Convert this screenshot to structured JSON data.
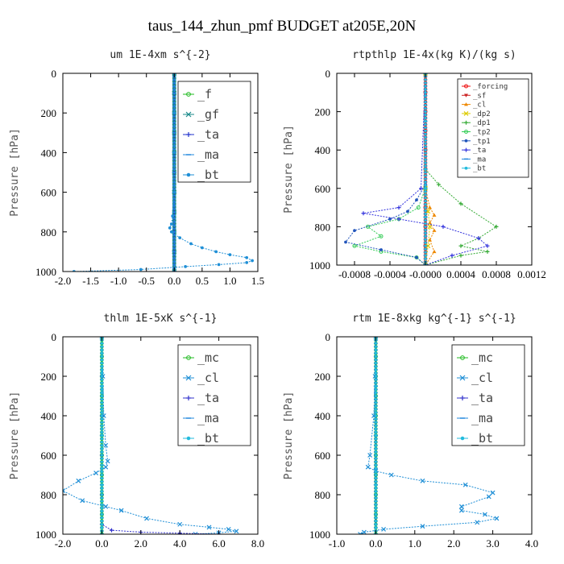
{
  "figure": {
    "title": "taus_144_zhun_pmf  BUDGET at205E,20N"
  },
  "chart_data": [
    {
      "type": "line",
      "title": "um  1E-4xm s^{-2}",
      "ylabel": "Pressure [hPa]",
      "xlim": [
        -2.0,
        1.5
      ],
      "ylim": [
        1000,
        0
      ],
      "xticks": [
        "-2.0",
        "-1.5",
        "-1.0",
        "-0.5",
        "0.0",
        "0.5",
        "1.0",
        "1.5"
      ],
      "yticks": [
        "0",
        "200",
        "400",
        "600",
        "800",
        "1000"
      ],
      "grid": false,
      "legend_position": "top-right",
      "legend_style": "big",
      "series": [
        {
          "name": "_f",
          "color": "#22bb22",
          "marker": "o",
          "x": [
            0,
            0,
            0,
            0,
            0,
            0,
            0,
            0,
            0,
            0,
            0
          ],
          "y": [
            0,
            100,
            200,
            300,
            400,
            500,
            600,
            700,
            800,
            900,
            1000
          ]
        },
        {
          "name": "_gf",
          "color": "#1a8a8a",
          "marker": "x",
          "x": [
            0,
            0,
            0,
            0,
            0,
            0,
            0,
            0,
            0,
            0,
            0
          ],
          "y": [
            0,
            100,
            200,
            300,
            400,
            500,
            600,
            700,
            800,
            900,
            1000
          ]
        },
        {
          "name": "_ta",
          "color": "#2233cc",
          "marker": "+",
          "x": [
            0,
            0,
            0,
            0,
            0,
            0,
            0,
            0,
            0,
            0,
            0
          ],
          "y": [
            0,
            100,
            200,
            300,
            400,
            500,
            600,
            700,
            800,
            900,
            1000
          ]
        },
        {
          "name": "_ma",
          "color": "#2288dd",
          "marker": "-",
          "x": [
            0,
            0,
            0,
            0,
            0,
            0,
            0,
            0,
            0,
            0,
            0
          ],
          "y": [
            0,
            100,
            200,
            300,
            400,
            500,
            600,
            700,
            800,
            900,
            1000
          ]
        },
        {
          "name": "_bt",
          "color": "#1f8fd6",
          "marker": "*",
          "x": [
            0,
            0,
            0,
            0,
            -0.03,
            -0.05,
            -0.08,
            -0.05,
            0.1,
            0.3,
            0.5,
            0.75,
            1.0,
            1.3,
            1.4,
            1.3,
            0.8,
            0.2,
            -0.6,
            -1.8
          ],
          "y": [
            0,
            200,
            400,
            600,
            720,
            760,
            780,
            800,
            830,
            860,
            880,
            900,
            915,
            930,
            945,
            955,
            965,
            975,
            990,
            1000
          ]
        }
      ]
    },
    {
      "type": "line",
      "title": "rtpthlp  1E-4x(kg K)/(kg s)",
      "ylabel": "Pressure [hPa]",
      "xlim": [
        -0.001,
        0.0012
      ],
      "ylim": [
        1000,
        0
      ],
      "xticks": [
        "-0.0008",
        "-0.0004",
        "-0.0000",
        "0.0004",
        "0.0008",
        "0.0012"
      ],
      "yticks": [
        "0",
        "200",
        "400",
        "600",
        "800",
        "1000"
      ],
      "grid": false,
      "legend_position": "top-right",
      "legend_style": "small",
      "series": [
        {
          "name": "_forcing",
          "color": "#ee1111",
          "marker": "o",
          "x": [
            0,
            0,
            0,
            0,
            0,
            0,
            0,
            0,
            0,
            0,
            0
          ],
          "y": [
            0,
            100,
            200,
            300,
            400,
            500,
            600,
            700,
            800,
            900,
            1000
          ]
        },
        {
          "name": "_sf",
          "color": "#cc2222",
          "marker": "v",
          "x": [
            0,
            0,
            0,
            0,
            0,
            0,
            0,
            0,
            0,
            0,
            0
          ],
          "y": [
            0,
            100,
            200,
            300,
            400,
            500,
            600,
            700,
            800,
            900,
            1000
          ]
        },
        {
          "name": "_cl",
          "color": "#ee8800",
          "marker": "^",
          "x": [
            0,
            0,
            0,
            5e-05,
            0.0001,
            5e-05,
            0.0001,
            5e-05,
            0.0001,
            0
          ],
          "y": [
            0,
            500,
            600,
            700,
            740,
            780,
            820,
            870,
            930,
            1000
          ]
        },
        {
          "name": "_dp2",
          "color": "#ddcc00",
          "marker": "x",
          "x": [
            0,
            0,
            3e-05,
            5e-05,
            3e-05,
            0
          ],
          "y": [
            0,
            600,
            720,
            800,
            900,
            1000
          ]
        },
        {
          "name": "_dp1",
          "color": "#33aa33",
          "marker": "+",
          "x": [
            0,
            0,
            0.00015,
            0.0004,
            0.0008,
            0.0006,
            0.0004,
            0.0007,
            0.0004,
            0
          ],
          "y": [
            0,
            500,
            580,
            680,
            800,
            860,
            900,
            930,
            950,
            1000
          ]
        },
        {
          "name": "_tp2",
          "color": "#33cc55",
          "marker": "o",
          "x": [
            0,
            0,
            -8e-05,
            -0.0003,
            -0.00065,
            -0.0005,
            -0.0008,
            -0.0005,
            -0.0001,
            0
          ],
          "y": [
            0,
            600,
            700,
            760,
            800,
            850,
            900,
            930,
            960,
            1000
          ]
        },
        {
          "name": "_tp1",
          "color": "#2255bb",
          "marker": "*",
          "x": [
            0,
            0,
            -0.0001,
            -0.0002,
            -0.0004,
            -0.0008,
            -0.0009,
            -0.0005,
            -0.0001,
            0
          ],
          "y": [
            0,
            580,
            660,
            720,
            760,
            820,
            880,
            920,
            960,
            1000
          ]
        },
        {
          "name": "_ta",
          "color": "#3333dd",
          "marker": "+",
          "x": [
            0,
            -5e-05,
            -0.0003,
            -0.0007,
            -0.0003,
            0.0002,
            0.0006,
            0.0007,
            0.0003,
            0
          ],
          "y": [
            0,
            600,
            700,
            730,
            760,
            800,
            860,
            900,
            950,
            1000
          ]
        },
        {
          "name": "_ma",
          "color": "#2288dd",
          "marker": "-",
          "x": [
            0,
            0,
            0,
            0,
            0
          ],
          "y": [
            0,
            250,
            500,
            750,
            1000
          ]
        },
        {
          "name": "_bt",
          "color": "#22bbdd",
          "marker": "*",
          "x": [
            0,
            0,
            0,
            0,
            0
          ],
          "y": [
            0,
            250,
            500,
            750,
            1000
          ]
        }
      ]
    },
    {
      "type": "line",
      "title": "thlm  1E-5xK s^{-1}",
      "ylabel": "Pressure [hPa]",
      "xlim": [
        -2.0,
        8.0
      ],
      "ylim": [
        1000,
        0
      ],
      "xticks": [
        "-2.0",
        "0.0",
        "2.0",
        "4.0",
        "6.0",
        "8.0"
      ],
      "yticks": [
        "0",
        "200",
        "400",
        "600",
        "800",
        "1000"
      ],
      "grid": false,
      "legend_position": "top-right",
      "legend_style": "big",
      "series": [
        {
          "name": "_mc",
          "color": "#22bb22",
          "marker": "o",
          "x": [
            0,
            0,
            0,
            0,
            0,
            0,
            0,
            0,
            0,
            0,
            0
          ],
          "y": [
            0,
            100,
            200,
            300,
            400,
            500,
            600,
            700,
            800,
            900,
            1000
          ]
        },
        {
          "name": "_cl",
          "color": "#1f8fd6",
          "marker": "x",
          "x": [
            0,
            0.05,
            0.1,
            0.2,
            0.3,
            0.2,
            -0.3,
            -1.2,
            -2.0,
            -1.0,
            0.2,
            1.0,
            2.3,
            4.0,
            5.5,
            6.5,
            6.9,
            6.0,
            4.8
          ],
          "y": [
            0,
            200,
            400,
            550,
            630,
            660,
            690,
            730,
            780,
            830,
            860,
            880,
            920,
            950,
            965,
            975,
            985,
            993,
            1000
          ]
        },
        {
          "name": "_ta",
          "color": "#3333cc",
          "marker": "+",
          "x": [
            0,
            0,
            0,
            0,
            0,
            0,
            0.5,
            2,
            4,
            6
          ],
          "y": [
            0,
            200,
            400,
            600,
            800,
            950,
            980,
            990,
            995,
            1000
          ]
        },
        {
          "name": "_ma",
          "color": "#2288dd",
          "marker": "-",
          "x": [
            0,
            0,
            0,
            0,
            0
          ],
          "y": [
            0,
            250,
            500,
            750,
            1000
          ]
        },
        {
          "name": "_bt",
          "color": "#22bbdd",
          "marker": "*",
          "x": [
            0,
            0,
            0,
            0,
            0
          ],
          "y": [
            0,
            250,
            500,
            750,
            1000
          ]
        }
      ]
    },
    {
      "type": "line",
      "title": "rtm  1E-8xkg kg^{-1} s^{-1}",
      "ylabel": "Pressure [hPa]",
      "xlim": [
        -1.0,
        4.0
      ],
      "ylim": [
        1000,
        0
      ],
      "xticks": [
        "-1.0",
        "0.0",
        "1.0",
        "2.0",
        "3.0",
        "4.0"
      ],
      "yticks": [
        "0",
        "200",
        "400",
        "600",
        "800",
        "1000"
      ],
      "grid": false,
      "legend_position": "top-right",
      "legend_style": "big",
      "series": [
        {
          "name": "_mc",
          "color": "#22bb22",
          "marker": "o",
          "x": [
            0,
            0,
            0,
            0,
            0,
            0,
            0,
            0,
            0,
            0,
            0
          ],
          "y": [
            0,
            100,
            200,
            300,
            400,
            500,
            600,
            700,
            800,
            900,
            1000
          ]
        },
        {
          "name": "_cl",
          "color": "#1f8fd6",
          "marker": "x",
          "x": [
            0,
            -0.02,
            -0.05,
            -0.15,
            -0.2,
            0,
            0.4,
            1.2,
            2.3,
            3.0,
            2.9,
            2.2,
            2.2,
            2.8,
            3.1,
            2.6,
            1.2,
            0.2,
            -0.3,
            -0.4
          ],
          "y": [
            0,
            200,
            400,
            600,
            660,
            680,
            700,
            730,
            750,
            790,
            810,
            860,
            880,
            900,
            920,
            940,
            960,
            975,
            990,
            1000
          ]
        },
        {
          "name": "_ta",
          "color": "#3333cc",
          "marker": "+",
          "x": [
            0,
            0,
            0,
            0,
            0
          ],
          "y": [
            0,
            250,
            500,
            750,
            1000
          ]
        },
        {
          "name": "_ma",
          "color": "#2288dd",
          "marker": "-",
          "x": [
            0,
            0,
            0,
            0,
            0
          ],
          "y": [
            0,
            250,
            500,
            750,
            1000
          ]
        },
        {
          "name": "_bt",
          "color": "#22bbdd",
          "marker": "*",
          "x": [
            0,
            0,
            0,
            0,
            0
          ],
          "y": [
            0,
            250,
            500,
            750,
            1000
          ]
        }
      ]
    }
  ]
}
